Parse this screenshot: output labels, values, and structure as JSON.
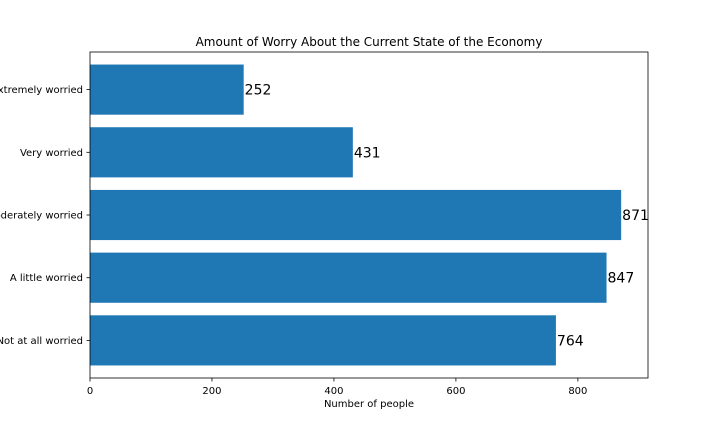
{
  "chart_data": {
    "type": "bar",
    "orientation": "horizontal",
    "title": "Amount of Worry About the Current State of the Economy",
    "xlabel": "Number of people",
    "ylabel": "",
    "categories": [
      "Not at all worried",
      "A little worried",
      "Moderately worried",
      "Very worried",
      "Extremely worried"
    ],
    "values": [
      764,
      847,
      871,
      431,
      252
    ],
    "xlim": [
      0,
      915
    ],
    "xticks": [
      0,
      200,
      400,
      600,
      800
    ],
    "grid": false,
    "legend": "none",
    "bar_color": "#1f77b4"
  }
}
